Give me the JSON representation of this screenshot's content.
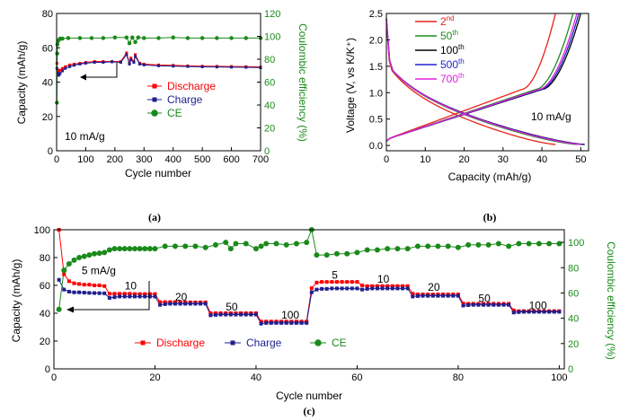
{
  "chart_data": [
    {
      "panel": "(a)",
      "type": "scatter",
      "xlabel": "Cycle number",
      "ylabel": "Capacity (mAh/g)",
      "y2label": "Coulombic efficiency (%)",
      "xlim": [
        0,
        700
      ],
      "ylim": [
        0,
        80
      ],
      "y2lim": [
        0,
        120
      ],
      "xticks": [
        0,
        100,
        200,
        300,
        400,
        500,
        600,
        700
      ],
      "yticks": [
        0,
        20,
        40,
        60,
        80
      ],
      "y2ticks": [
        0,
        20,
        40,
        60,
        80,
        100,
        120
      ],
      "annotation": "10 mA/g",
      "legend_position": "right",
      "series": [
        {
          "name": "Discharge",
          "color": "#ff0000",
          "marker": "square",
          "axis": "left",
          "x": [
            1,
            3,
            5,
            8,
            12,
            20,
            30,
            45,
            60,
            80,
            100,
            130,
            160,
            190,
            220,
            240,
            250,
            255,
            265,
            270,
            285,
            300,
            350,
            400,
            450,
            500,
            550,
            600,
            650,
            700
          ],
          "y": [
            51,
            47,
            46,
            46,
            47,
            48,
            49,
            50,
            50.5,
            51,
            51.5,
            52,
            52,
            52,
            52,
            57,
            51,
            54,
            52,
            56,
            51,
            50.5,
            50,
            49.8,
            49.5,
            49.3,
            49.2,
            49.1,
            49,
            48.8
          ]
        },
        {
          "name": "Charge",
          "color": "#1f1f8f",
          "marker": "square",
          "axis": "left",
          "x": [
            1,
            3,
            5,
            8,
            12,
            20,
            30,
            45,
            60,
            80,
            100,
            130,
            160,
            190,
            220,
            240,
            250,
            255,
            265,
            270,
            285,
            300,
            350,
            400,
            450,
            500,
            550,
            600,
            650,
            700
          ],
          "y": [
            48,
            45,
            44,
            44,
            45,
            46.5,
            48,
            49,
            49.8,
            50.5,
            51,
            51.5,
            51.5,
            51.8,
            51.5,
            56,
            50.5,
            53,
            51.5,
            55,
            50.5,
            50,
            49.5,
            49.3,
            49.1,
            48.9,
            48.8,
            48.7,
            48.6,
            48.4
          ]
        },
        {
          "name": "CE",
          "color": "#1a8a1a",
          "marker": "circle",
          "axis": "right",
          "x": [
            1,
            2,
            3,
            5,
            8,
            12,
            20,
            40,
            80,
            120,
            160,
            200,
            240,
            250,
            260,
            270,
            280,
            300,
            350,
            400,
            450,
            500,
            550,
            600,
            650,
            700
          ],
          "y": [
            42,
            85,
            93,
            96,
            97,
            98,
            98,
            98.5,
            98.5,
            98.5,
            98.5,
            99,
            99,
            94,
            99,
            95,
            99,
            98.5,
            98.5,
            99,
            98.5,
            98.5,
            98.5,
            98.5,
            98.5,
            98.5
          ]
        }
      ]
    },
    {
      "panel": "(b)",
      "type": "line",
      "xlabel": "Capacity (mAh/g)",
      "ylabel": "Voltage (V, vs K/K⁺)",
      "xlim": [
        0,
        52
      ],
      "ylim": [
        -0.1,
        2.5
      ],
      "xticks": [
        0,
        10,
        20,
        30,
        40,
        50
      ],
      "yticks": [
        0.0,
        0.5,
        1.0,
        1.5,
        2.0,
        2.5
      ],
      "annotation": "10 mA/g",
      "legend_position": "top-left",
      "series": [
        {
          "name": "2nd",
          "label_base": "2",
          "label_sup": "nd",
          "color": "#e8221b",
          "discharge_end": 43.5,
          "charge_end": 43.5
        },
        {
          "name": "50th",
          "label_base": "50",
          "label_sup": "th",
          "color": "#1f8a1f",
          "discharge_end": 49,
          "charge_end": 48
        },
        {
          "name": "100th",
          "label_base": "100",
          "label_sup": "th",
          "color": "#000000",
          "discharge_end": 51,
          "charge_end": 50
        },
        {
          "name": "500th",
          "label_base": "500",
          "label_sup": "th",
          "color": "#2222cc",
          "discharge_end": 50.5,
          "charge_end": 49.5
        },
        {
          "name": "700th",
          "label_base": "700",
          "label_sup": "th",
          "color": "#e020e0",
          "discharge_end": 50,
          "charge_end": 49
        }
      ]
    },
    {
      "panel": "(c)",
      "type": "scatter",
      "xlabel": "Cycle number",
      "ylabel": "Capacity (mAh/g)",
      "y2label": "Coulombic efficiency (%)",
      "xlim": [
        0,
        101
      ],
      "ylim": [
        0,
        100
      ],
      "y2lim": [
        0,
        110
      ],
      "xticks": [
        0,
        20,
        40,
        60,
        80,
        100
      ],
      "yticks": [
        0,
        20,
        40,
        60,
        80,
        100
      ],
      "y2ticks": [
        0,
        20,
        40,
        60,
        80,
        100
      ],
      "legend_position": "bottom",
      "rate_labels": [
        {
          "text": "5 mA/g",
          "x": 5.5,
          "y": 68
        },
        {
          "text": "10",
          "x": 14,
          "y": 57
        },
        {
          "text": "20",
          "x": 24,
          "y": 49
        },
        {
          "text": "50",
          "x": 34,
          "y": 42
        },
        {
          "text": "100",
          "x": 45,
          "y": 36
        },
        {
          "text": "5",
          "x": 55,
          "y": 65
        },
        {
          "text": "10",
          "x": 64,
          "y": 62
        },
        {
          "text": "20",
          "x": 74,
          "y": 56
        },
        {
          "text": "50",
          "x": 84,
          "y": 48
        },
        {
          "text": "100",
          "x": 94,
          "y": 43
        }
      ],
      "segments": [
        {
          "from": 2,
          "to": 10,
          "discharge": [
            68,
            63,
            61.5,
            61,
            60.5,
            60.5,
            60,
            60,
            59.5
          ],
          "charge": [
            57,
            55.5,
            55,
            55,
            54.8,
            54.6,
            54.5,
            54.4,
            54.3
          ]
        },
        {
          "from": 11,
          "to": 20,
          "discharge": [
            54,
            54,
            54,
            54,
            54,
            53.8,
            53.8,
            53.8,
            53.8,
            53.8
          ],
          "charge": [
            51,
            51.5,
            52,
            52,
            52,
            52,
            52,
            52,
            52,
            52
          ]
        },
        {
          "from": 21,
          "to": 30,
          "discharge": [
            48,
            48,
            48,
            48,
            48,
            47.8,
            47.8,
            47.8,
            47.8,
            47.8
          ],
          "charge": [
            46,
            46.5,
            46.8,
            46.8,
            46.8,
            46.8,
            46.8,
            46.8,
            46.8,
            46.8
          ]
        },
        {
          "from": 31,
          "to": 40,
          "discharge": [
            40,
            40,
            40,
            40,
            40,
            40,
            40,
            40,
            40,
            40
          ],
          "charge": [
            38.5,
            38.8,
            39,
            39,
            39,
            39,
            39,
            39,
            39,
            39
          ]
        },
        {
          "from": 41,
          "to": 50,
          "discharge": [
            34,
            34,
            34,
            34,
            34,
            34,
            34,
            34,
            34,
            34
          ],
          "charge": [
            32.5,
            33,
            33,
            33,
            33,
            33,
            33,
            33,
            33,
            33
          ]
        },
        {
          "from": 51,
          "to": 60,
          "discharge": [
            58,
            62,
            62.5,
            62.5,
            62.5,
            62.5,
            62.5,
            62.5,
            62.5,
            62.5
          ],
          "charge": [
            55,
            57,
            57.5,
            57.5,
            57.8,
            57.8,
            57.8,
            57.8,
            57.8,
            57.8
          ]
        },
        {
          "from": 61,
          "to": 70,
          "discharge": [
            60,
            59.5,
            59.5,
            59.5,
            59.5,
            59.5,
            59.5,
            59.5,
            59.5,
            59.5
          ],
          "charge": [
            57,
            57.5,
            57.8,
            57.8,
            57.8,
            57.8,
            57.8,
            57.8,
            57.8,
            57.8
          ]
        },
        {
          "from": 71,
          "to": 80,
          "discharge": [
            54,
            53.5,
            53.5,
            53.5,
            53.5,
            53.5,
            53.5,
            53.5,
            53.5,
            53.5
          ],
          "charge": [
            52,
            52.3,
            52.5,
            52.5,
            52.5,
            52.5,
            52.5,
            52.5,
            52.5,
            52.5
          ]
        },
        {
          "from": 81,
          "to": 90,
          "discharge": [
            47,
            46.8,
            46.8,
            46.8,
            46.8,
            46.8,
            46.8,
            46.8,
            46.8,
            46.8
          ],
          "charge": [
            45.5,
            45.8,
            46,
            46,
            46,
            46,
            46,
            46,
            46,
            46
          ]
        },
        {
          "from": 91,
          "to": 100,
          "discharge": [
            42,
            41.5,
            41.5,
            41.5,
            41.5,
            41.5,
            41.5,
            41.5,
            41.5,
            41.5
          ],
          "charge": [
            40.5,
            40.8,
            41,
            41,
            41,
            41,
            41,
            41,
            41,
            41
          ]
        }
      ],
      "first_point": {
        "x": 1,
        "discharge": 100,
        "charge": 64
      },
      "ce": {
        "x": [
          1,
          2,
          3,
          4,
          5,
          6,
          7,
          8,
          9,
          10,
          11,
          12,
          13,
          14,
          15,
          16,
          17,
          18,
          19,
          20,
          22,
          24,
          26,
          28,
          30,
          32,
          34,
          35,
          36,
          38,
          40,
          41,
          42,
          44,
          46,
          48,
          50,
          51,
          52,
          54,
          56,
          58,
          60,
          62,
          64,
          66,
          68,
          70,
          72,
          74,
          76,
          78,
          80,
          82,
          84,
          86,
          88,
          90,
          92,
          94,
          96,
          98,
          100
        ],
        "y": [
          47,
          78,
          83,
          86,
          88,
          89,
          90,
          91,
          91.5,
          92,
          94,
          95,
          95,
          95,
          95,
          95,
          95,
          95,
          95,
          95,
          97,
          97,
          97,
          97,
          96,
          98,
          100,
          95,
          99,
          99,
          95,
          97,
          99,
          99,
          98,
          99,
          100,
          110,
          90,
          90,
          91,
          91,
          92,
          94,
          94,
          95,
          95,
          95,
          97,
          97,
          97,
          97,
          96,
          98,
          98,
          98,
          99,
          97,
          99,
          99,
          99,
          99,
          99
        ]
      },
      "series": [
        {
          "name": "Discharge",
          "color": "#ff0000",
          "marker": "square"
        },
        {
          "name": "Charge",
          "color": "#1f1f8f",
          "marker": "square"
        },
        {
          "name": "CE",
          "color": "#1a8a1a",
          "marker": "circle"
        }
      ]
    }
  ]
}
